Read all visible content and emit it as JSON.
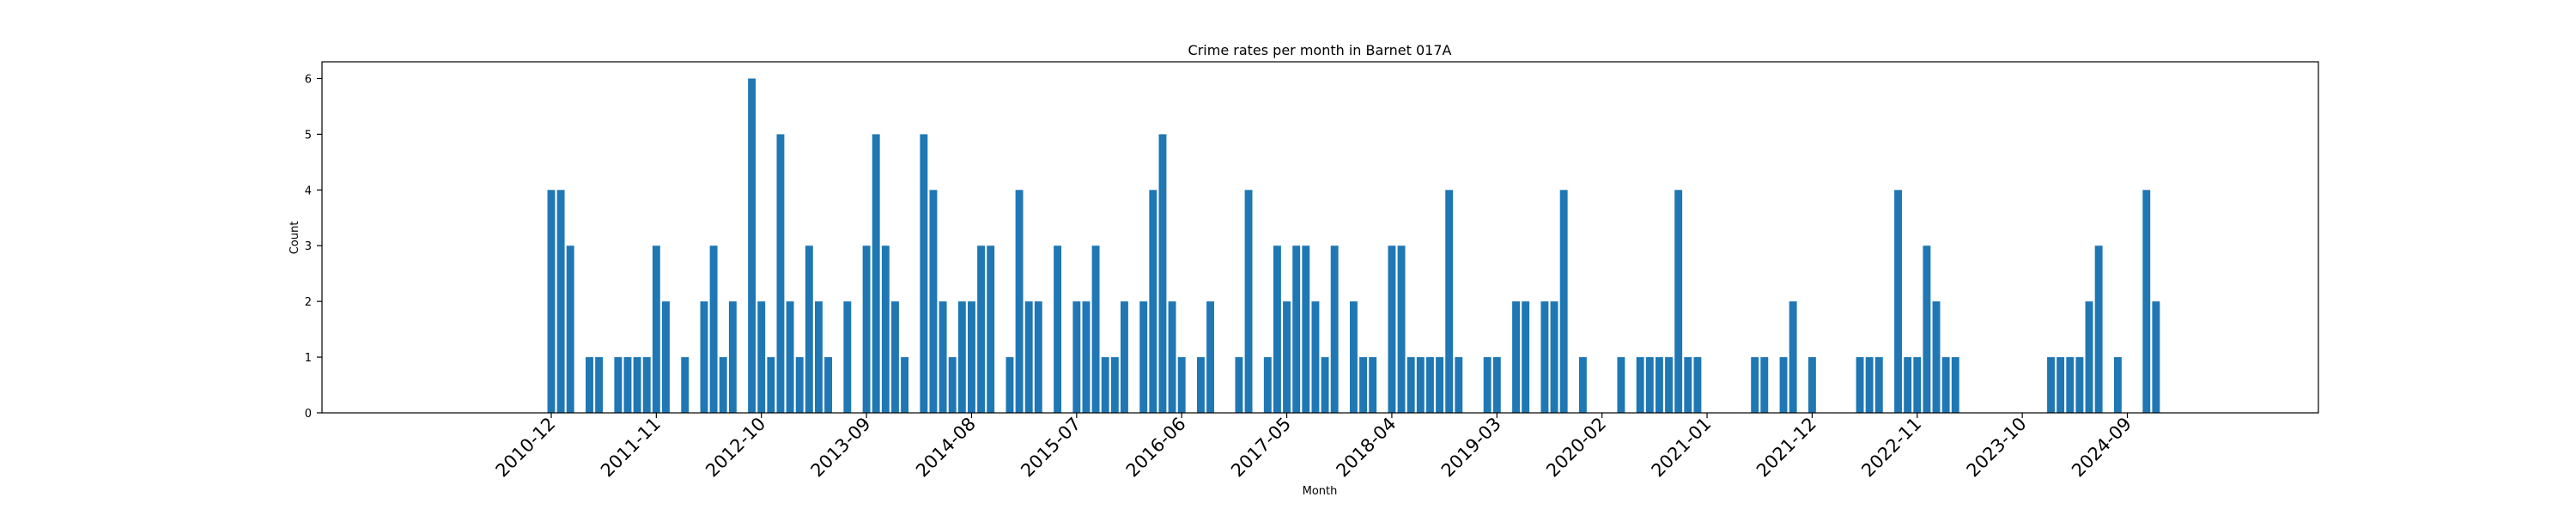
{
  "chart_data": {
    "type": "bar",
    "title": "Crime rates per month in Barnet 017A",
    "xlabel": "Month",
    "ylabel": "Count",
    "ylim": [
      0,
      6.3
    ],
    "yticks": [
      0,
      1,
      2,
      3,
      4,
      5,
      6
    ],
    "xlim": [
      "2008-12",
      "2026-05"
    ],
    "x_tick_labels": [
      "2010-12",
      "2011-11",
      "2012-10",
      "2013-09",
      "2014-08",
      "2015-07",
      "2016-06",
      "2017-05",
      "2018-04",
      "2019-03",
      "2020-02",
      "2021-01",
      "2021-12",
      "2022-11",
      "2023-10",
      "2024-09"
    ],
    "grid": false,
    "bar_color": "#1f77b4",
    "months": [
      "2010-12",
      "2011-01",
      "2011-02",
      "2011-04",
      "2011-05",
      "2011-07",
      "2011-08",
      "2011-09",
      "2011-10",
      "2011-11",
      "2011-12",
      "2012-02",
      "2012-04",
      "2012-05",
      "2012-06",
      "2012-07",
      "2012-09",
      "2012-10",
      "2012-11",
      "2012-12",
      "2013-01",
      "2013-02",
      "2013-03",
      "2013-04",
      "2013-05",
      "2013-07",
      "2013-09",
      "2013-10",
      "2013-11",
      "2013-12",
      "2014-01",
      "2014-03",
      "2014-04",
      "2014-05",
      "2014-06",
      "2014-07",
      "2014-08",
      "2014-09",
      "2014-10",
      "2014-12",
      "2015-01",
      "2015-02",
      "2015-03",
      "2015-05",
      "2015-07",
      "2015-08",
      "2015-09",
      "2015-10",
      "2015-11",
      "2015-12",
      "2016-02",
      "2016-03",
      "2016-04",
      "2016-05",
      "2016-06",
      "2016-08",
      "2016-09",
      "2016-12",
      "2017-01",
      "2017-03",
      "2017-04",
      "2017-05",
      "2017-06",
      "2017-07",
      "2017-08",
      "2017-09",
      "2017-10",
      "2017-12",
      "2018-01",
      "2018-02",
      "2018-04",
      "2018-05",
      "2018-06",
      "2018-07",
      "2018-08",
      "2018-09",
      "2018-10",
      "2018-11",
      "2019-02",
      "2019-03",
      "2019-05",
      "2019-06",
      "2019-08",
      "2019-09",
      "2019-10",
      "2019-12",
      "2020-04",
      "2020-06",
      "2020-07",
      "2020-08",
      "2020-09",
      "2020-10",
      "2020-11",
      "2020-12",
      "2021-06",
      "2021-07",
      "2021-09",
      "2021-10",
      "2021-12",
      "2022-05",
      "2022-06",
      "2022-07",
      "2022-09",
      "2022-10",
      "2022-11",
      "2022-12",
      "2023-01",
      "2023-02",
      "2023-03",
      "2024-01",
      "2024-02",
      "2024-03",
      "2024-04",
      "2024-05",
      "2024-06",
      "2024-08",
      "2024-11",
      "2024-12"
    ],
    "values": [
      4,
      4,
      3,
      1,
      1,
      1,
      1,
      1,
      1,
      3,
      2,
      1,
      2,
      3,
      1,
      2,
      6,
      2,
      1,
      5,
      2,
      1,
      3,
      2,
      1,
      2,
      3,
      5,
      3,
      2,
      1,
      5,
      4,
      2,
      1,
      2,
      2,
      3,
      3,
      1,
      4,
      2,
      2,
      3,
      2,
      2,
      3,
      1,
      1,
      2,
      2,
      4,
      5,
      2,
      1,
      1,
      2,
      1,
      4,
      1,
      3,
      2,
      3,
      3,
      2,
      1,
      3,
      2,
      1,
      1,
      3,
      3,
      1,
      1,
      1,
      1,
      4,
      1,
      1,
      1,
      2,
      2,
      2,
      2,
      4,
      1,
      1,
      1,
      1,
      1,
      1,
      4,
      1,
      1,
      1,
      1,
      1,
      2,
      1,
      1,
      1,
      1,
      4,
      1,
      1,
      3,
      2,
      1,
      1,
      1,
      1,
      1,
      1,
      2,
      3,
      1,
      4,
      2
    ]
  }
}
